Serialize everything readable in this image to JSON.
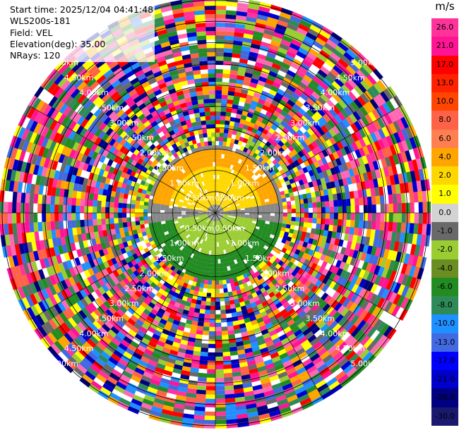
{
  "info": {
    "start_time": "Start time: 2025/12/04 04:41:48",
    "instrument": "WLS200s-181",
    "field": "Field: VEL",
    "elevation": "Elevation(deg): 35.00",
    "nrays": "NRays: 120"
  },
  "colorbar": {
    "unit": "m/s",
    "ticks": [
      "26.0",
      "21.0",
      "17.0",
      "13.0",
      "10.0",
      "8.0",
      "6.0",
      "4.0",
      "2.0",
      "1.0",
      "0.0",
      "-1.0",
      "-2.0",
      "-4.0",
      "-6.0",
      "-8.0",
      "-10.0",
      "-13.0",
      "-17.0",
      "-21.0",
      "-26.0",
      "-30.0"
    ],
    "colors": [
      "#ff3399",
      "#ff1493",
      "#ff0000",
      "#ff2200",
      "#ff4500",
      "#ff6347",
      "#ff7f50",
      "#ffa500",
      "#ffd700",
      "#ffff00",
      "#d3d3d3",
      "#696969",
      "#9acd32",
      "#6b8e23",
      "#228b22",
      "#2e8b57",
      "#1e90ff",
      "#4169e1",
      "#0000ff",
      "#0000cd",
      "#000080",
      "#191970"
    ]
  },
  "range_labels": [
    "0.00km",
    "0.50km",
    "1.00km",
    "1.50km",
    "2.00km",
    "2.50km",
    "3.00km",
    "3.50km",
    "4.00km",
    "4.50km",
    "5.00km"
  ],
  "ppi": {
    "noise_colors": [
      "#ff1493",
      "#ff69b4",
      "#0000cd",
      "#000080",
      "#ffff00",
      "#ff0000",
      "#9acd32",
      "#228b22",
      "#2e8b57",
      "#1e90ff",
      "#ffa500",
      "#ff6347",
      "#ffffff",
      "#696969",
      "#4169e1",
      "#ff3399"
    ]
  }
}
